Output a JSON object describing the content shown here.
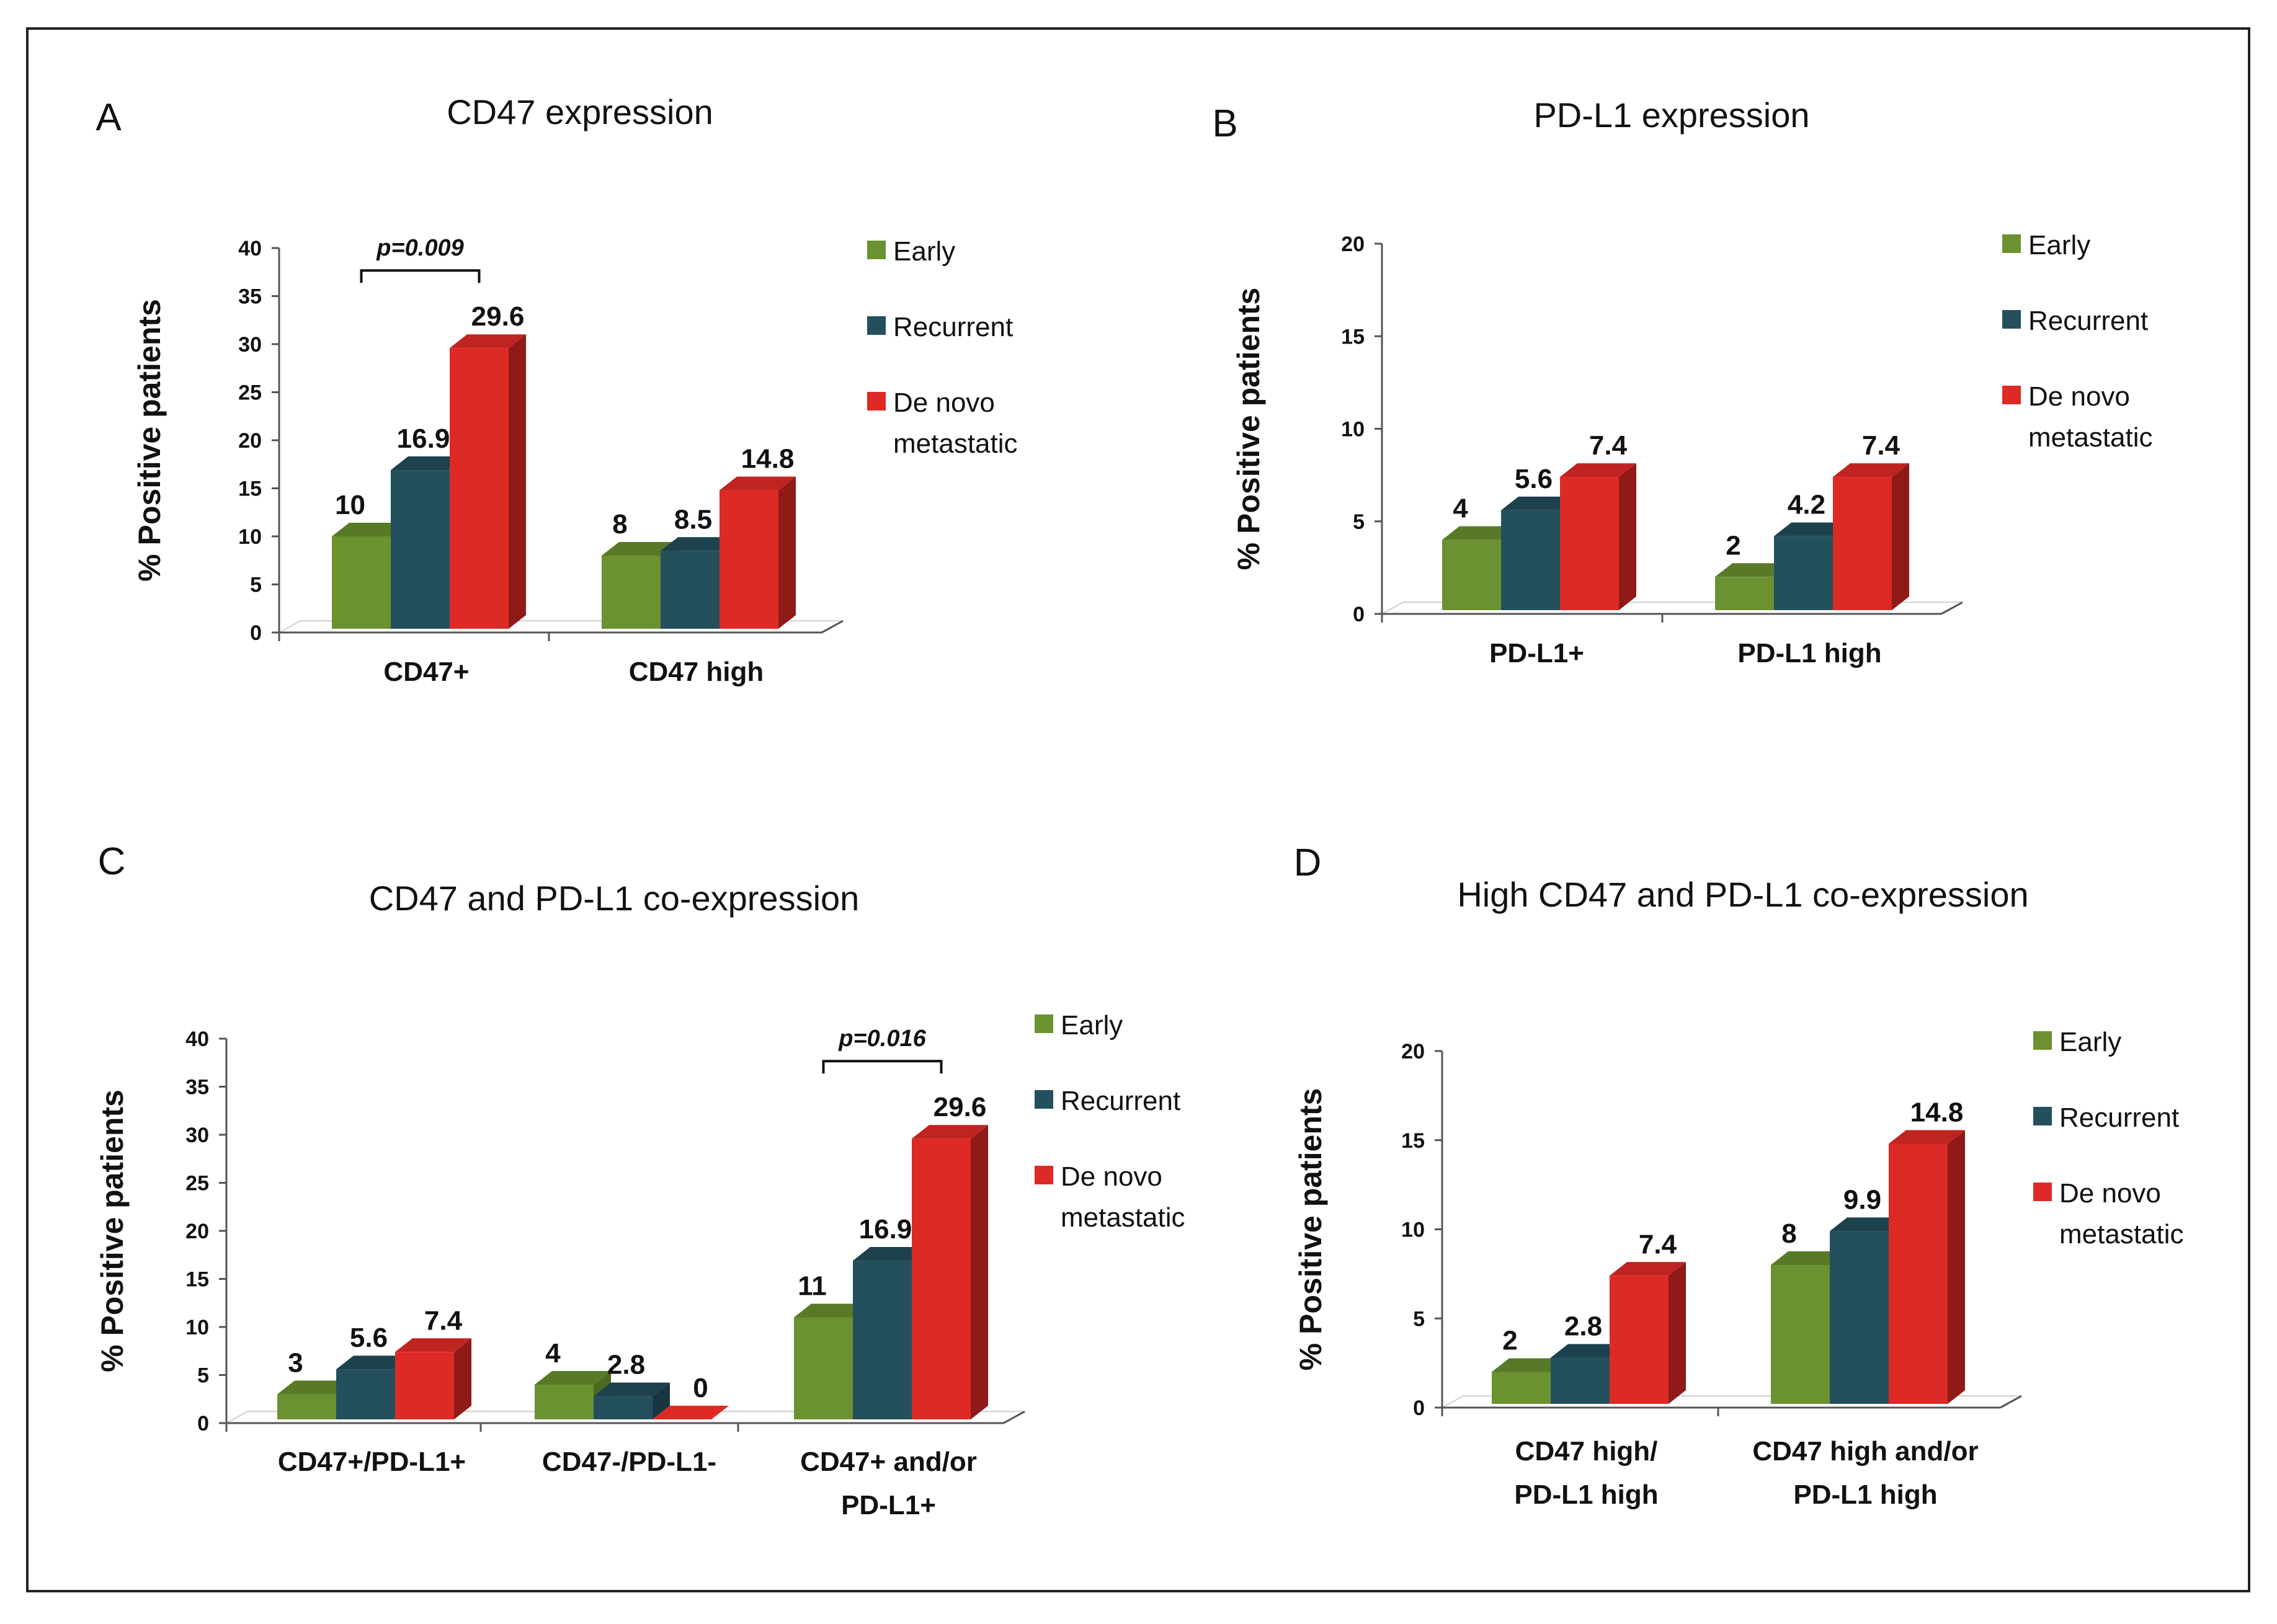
{
  "colors": {
    "Early": {
      "front": "#6b9130",
      "top": "#587a27",
      "side": "#4c6a20"
    },
    "Recurrent": {
      "front": "#24505e",
      "top": "#1d424e",
      "side": "#173642"
    },
    "De novo metastatic": {
      "front": "#dd2a26",
      "top": "#c02420",
      "side": "#8f1a17"
    }
  },
  "chart_data": [
    {
      "panel": "A",
      "type": "bar",
      "title": "CD47 expression",
      "ylabel": "% Positive patients",
      "ylim": [
        0,
        40
      ],
      "yticks": [
        0,
        5,
        10,
        15,
        20,
        25,
        30,
        35,
        40
      ],
      "categories": [
        "CD47+",
        "CD47 high"
      ],
      "series": [
        {
          "name": "Early",
          "values": [
            10,
            8
          ],
          "labels": [
            "10",
            "8"
          ]
        },
        {
          "name": "Recurrent",
          "values": [
            16.9,
            8.5
          ],
          "labels": [
            "16.9",
            "8.5"
          ]
        },
        {
          "name": "De novo metastatic",
          "values": [
            29.6,
            14.8
          ],
          "labels": [
            "29.6",
            "14.8"
          ]
        }
      ],
      "legend": {
        "position": "right",
        "entries": [
          "Early",
          "Recurrent",
          "De novo",
          "metastatic"
        ]
      },
      "annotations": [
        {
          "text": "p=0.009",
          "category": 0,
          "from": "Early",
          "to": "De novo metastatic"
        }
      ]
    },
    {
      "panel": "B",
      "type": "bar",
      "title": "PD-L1 expression",
      "ylabel": "% Positive patients",
      "ylim": [
        0,
        20
      ],
      "yticks": [
        0,
        5,
        10,
        15,
        20
      ],
      "categories": [
        "PD-L1+",
        "PD-L1 high"
      ],
      "series": [
        {
          "name": "Early",
          "values": [
            4,
            2
          ],
          "labels": [
            "4",
            "2"
          ]
        },
        {
          "name": "Recurrent",
          "values": [
            5.6,
            4.2
          ],
          "labels": [
            "5.6",
            "4.2"
          ]
        },
        {
          "name": "De novo metastatic",
          "values": [
            7.4,
            7.4
          ],
          "labels": [
            "7.4",
            "7.4"
          ]
        }
      ],
      "legend": {
        "position": "right",
        "entries": [
          "Early",
          "Recurrent",
          "De novo",
          "metastatic"
        ]
      },
      "annotations": []
    },
    {
      "panel": "C",
      "type": "bar",
      "title": "CD47 and PD-L1 co-expression",
      "ylabel": "% Positive patients",
      "ylim": [
        0,
        40
      ],
      "yticks": [
        0,
        5,
        10,
        15,
        20,
        25,
        30,
        35,
        40
      ],
      "categories": [
        "CD47+/PD-L1+",
        "CD47-/PD-L1-",
        "CD47+ and/or|PD-L1+"
      ],
      "series": [
        {
          "name": "Early",
          "values": [
            3,
            4,
            11
          ],
          "labels": [
            "3",
            "4",
            "11"
          ]
        },
        {
          "name": "Recurrent",
          "values": [
            5.6,
            2.8,
            16.9
          ],
          "labels": [
            "5.6",
            "2.8",
            "16.9"
          ]
        },
        {
          "name": "De novo metastatic",
          "values": [
            7.4,
            0,
            29.6
          ],
          "labels": [
            "7.4",
            "0",
            "29.6"
          ]
        }
      ],
      "legend": {
        "position": "right",
        "entries": [
          "Early",
          "Recurrent",
          "De novo",
          "metastatic"
        ]
      },
      "annotations": [
        {
          "text": "p=0.016",
          "category": 2,
          "from": "Early",
          "to": "De novo metastatic"
        }
      ]
    },
    {
      "panel": "D",
      "type": "bar",
      "title": "High CD47 and PD-L1 co-expression",
      "ylabel": "% Positive patients",
      "ylim": [
        0,
        20
      ],
      "yticks": [
        0,
        5,
        10,
        15,
        20
      ],
      "categories": [
        "CD47 high/|PD-L1 high",
        "CD47 high and/or|PD-L1 high"
      ],
      "series": [
        {
          "name": "Early",
          "values": [
            2,
            8
          ],
          "labels": [
            "2",
            "8"
          ]
        },
        {
          "name": "Recurrent",
          "values": [
            2.8,
            9.9
          ],
          "labels": [
            "2.8",
            "9.9"
          ]
        },
        {
          "name": "De novo metastatic",
          "values": [
            7.4,
            14.8
          ],
          "labels": [
            "7.4",
            "14.8"
          ]
        }
      ],
      "legend": {
        "position": "right",
        "entries": [
          "Early",
          "Recurrent",
          "De novo",
          "metastatic"
        ]
      },
      "annotations": []
    }
  ]
}
